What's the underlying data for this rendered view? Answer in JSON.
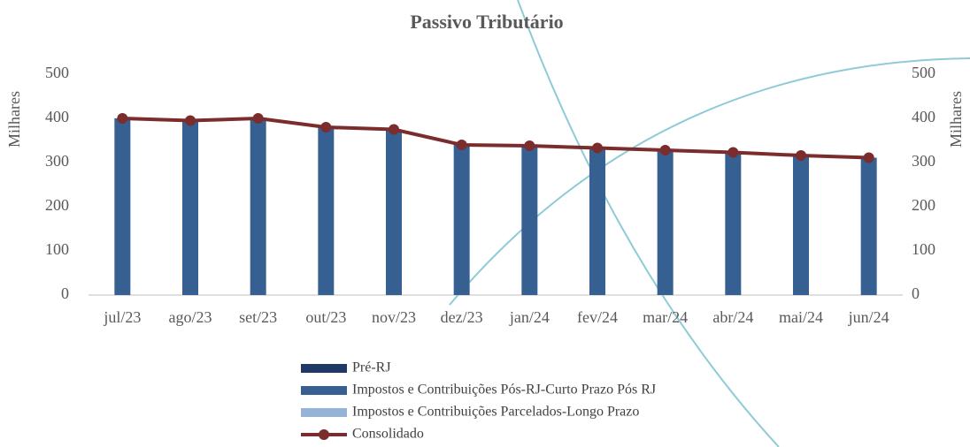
{
  "chart_data": {
    "type": "combo",
    "title": "Passivo Tributário",
    "y_label": "Milhares",
    "y2_label": "Milhares",
    "categories": [
      "jul/23",
      "ago/23",
      "set/23",
      "out/23",
      "nov/23",
      "dez/23",
      "jan/24",
      "fev/24",
      "mar/24",
      "abr/24",
      "mai/24",
      "jun/24"
    ],
    "ylim": [
      0,
      500
    ],
    "yticks": [
      0,
      100,
      200,
      300,
      400,
      500
    ],
    "y2lim": [
      0,
      500
    ],
    "y2ticks": [
      0,
      100,
      200,
      300,
      400,
      500
    ],
    "series": [
      {
        "name": "Pré-RJ",
        "type": "bar",
        "color": "#1f3864",
        "values": [
          0,
          0,
          0,
          0,
          0,
          0,
          0,
          0,
          0,
          0,
          0,
          0
        ]
      },
      {
        "name": "Impostos e Contribuições Pós-RJ-Curto Prazo Pós RJ",
        "type": "bar",
        "color": "#376092",
        "values": [
          400,
          395,
          400,
          380,
          375,
          340,
          338,
          333,
          328,
          323,
          316,
          311
        ]
      },
      {
        "name": "Impostos e Contribuições Parcelados-Longo Prazo",
        "type": "bar",
        "color": "#95b3d7",
        "values": [
          0,
          0,
          0,
          0,
          0,
          0,
          0,
          0,
          0,
          0,
          0,
          0
        ]
      },
      {
        "name": "Consolidado",
        "type": "line",
        "axis": "y2",
        "color": "#7b2c2c",
        "values": [
          400,
          395,
          400,
          380,
          375,
          340,
          338,
          333,
          328,
          323,
          316,
          311
        ]
      }
    ]
  }
}
